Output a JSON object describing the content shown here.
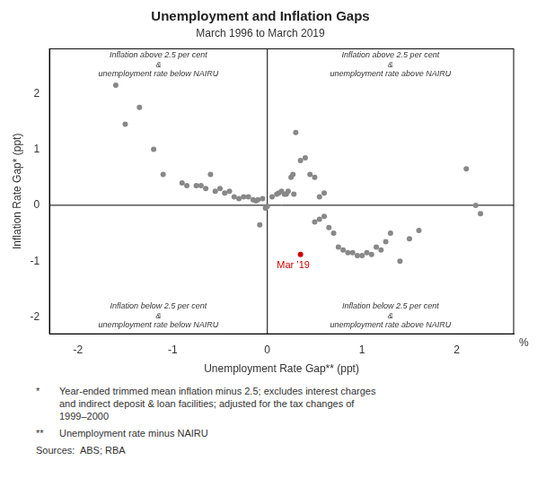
{
  "chart_data": {
    "type": "scatter",
    "title": "Unemployment and Inflation Gaps",
    "subtitle": "March 1996 to March 2019",
    "x_label": "Unemployment Rate Gap** (ppt)",
    "y_label": "Inflation Rate Gap* (ppt)",
    "xlim": [
      -2.3,
      2.6
    ],
    "ylim": [
      -2.3,
      2.8
    ],
    "xticks": [
      -2,
      -1,
      0,
      1,
      2
    ],
    "yticks": [
      -2,
      -1,
      0,
      1,
      2
    ],
    "grid": false,
    "unit_label": "%",
    "color": "#888888",
    "x": [
      -1.5,
      -1.35,
      -1.6,
      -1.2,
      -1.1,
      -0.9,
      -0.85,
      -0.75,
      -0.7,
      -0.65,
      -0.6,
      -0.55,
      -0.5,
      -0.45,
      -0.4,
      -0.35,
      -0.3,
      -0.25,
      -0.2,
      -0.15,
      -0.12,
      -0.1,
      -0.05,
      -0.02,
      0.0,
      0.05,
      0.1,
      0.12,
      0.15,
      0.18,
      0.2,
      0.22,
      0.25,
      0.27,
      0.28,
      0.3,
      0.35,
      0.4,
      0.45,
      0.5,
      0.5,
      0.55,
      0.6,
      0.65,
      0.7,
      0.75,
      0.8,
      0.85,
      0.9,
      0.95,
      1.0,
      1.05,
      1.1,
      1.15,
      1.2,
      1.25,
      1.3,
      1.4,
      1.5,
      1.6,
      2.1,
      2.2,
      2.25,
      -0.08,
      0.55,
      0.6
    ],
    "values": [
      1.45,
      1.75,
      2.15,
      1.0,
      0.55,
      0.4,
      0.35,
      0.35,
      0.35,
      0.3,
      0.55,
      0.25,
      0.3,
      0.22,
      0.25,
      0.15,
      0.12,
      0.15,
      0.15,
      0.1,
      0.08,
      0.1,
      0.12,
      -0.05,
      -0.02,
      0.15,
      0.2,
      0.22,
      0.25,
      0.2,
      0.2,
      0.25,
      0.5,
      0.55,
      0.2,
      1.3,
      0.8,
      0.85,
      0.55,
      0.5,
      -0.3,
      -0.25,
      -0.2,
      -0.4,
      -0.5,
      -0.75,
      -0.8,
      -0.85,
      -0.85,
      -0.9,
      -0.9,
      -0.85,
      -0.88,
      -0.75,
      -0.8,
      -0.65,
      -0.5,
      -1.0,
      -0.6,
      -0.45,
      0.65,
      0.0,
      -0.15,
      -0.35,
      0.15,
      0.22
    ],
    "highlight": {
      "x": 0.35,
      "y": -0.88,
      "label": "Mar ’19",
      "color": "#cc0000"
    },
    "crosshair": {
      "x": 0,
      "y": 0
    },
    "quadrant_labels": {
      "top_left": "Inflation above 2.5 per cent\n&\nunemployment rate below NAIRU",
      "top_right": "Inflation above 2.5 per cent\n&\nunemployment rate above NAIRU",
      "bottom_left": "Inflation below 2.5 per cent\n&\nunemployment rate below NAIRU",
      "bottom_right": "Inflation below 2.5 per cent\n&\nunemployment rate above NAIRU"
    },
    "footnotes": [
      {
        "mark": "*",
        "text": "Year-ended trimmed mean inflation minus 2.5; excludes interest charges\nand indirect deposit & loan facilities; adjusted for the tax changes of\n1999–2000"
      },
      {
        "mark": "**",
        "text": "Unemployment rate minus NAIRU"
      }
    ],
    "sources": "Sources:  ABS; RBA"
  }
}
